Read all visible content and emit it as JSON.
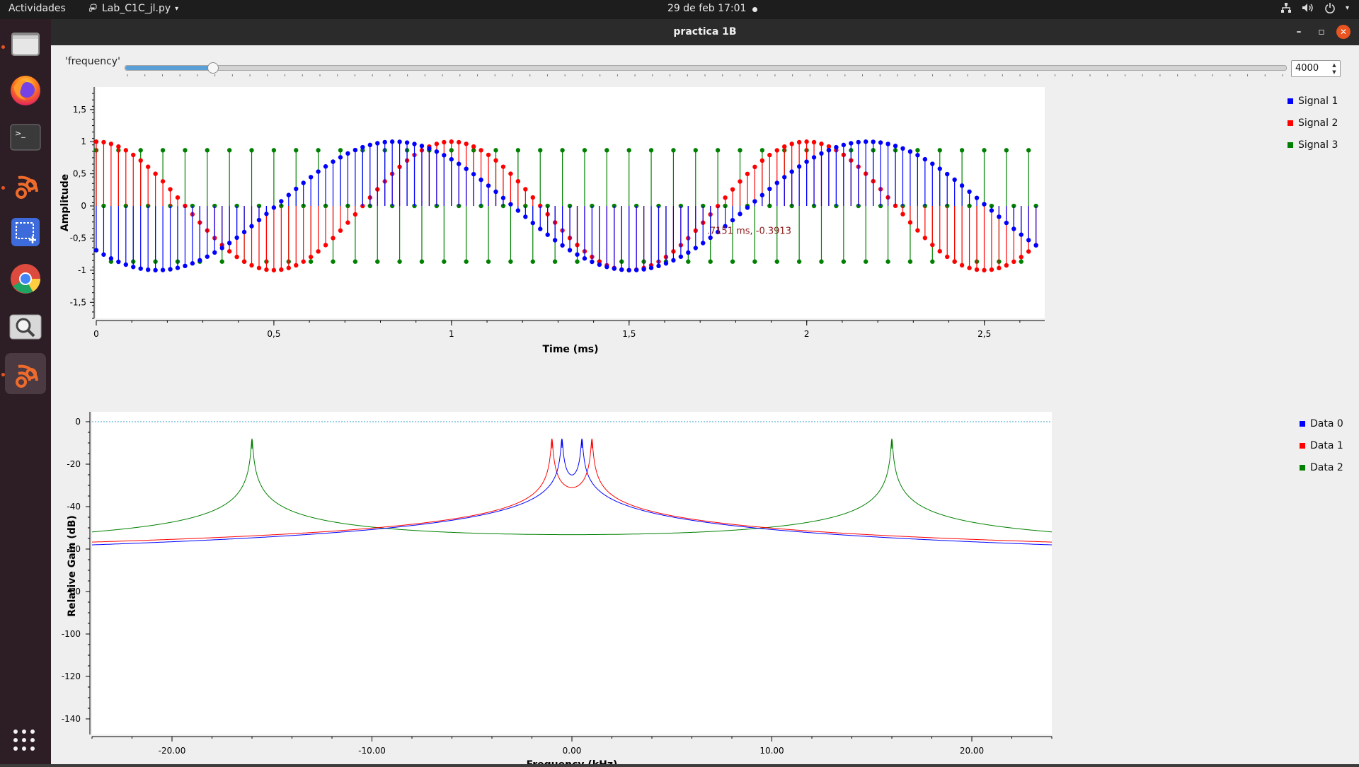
{
  "topbar": {
    "activities": "Actividades",
    "app_name": "Lab_C1C_jl.py",
    "clock": "29 de feb  17:01"
  },
  "dock": {
    "items": [
      {
        "name": "files",
        "icon": "folder-icon"
      },
      {
        "name": "firefox",
        "icon": "firefox-icon"
      },
      {
        "name": "terminal",
        "icon": "terminal-icon"
      },
      {
        "name": "gnuradio",
        "icon": "gnuradio-icon"
      },
      {
        "name": "screenshot",
        "icon": "screenshot-icon"
      },
      {
        "name": "chrome",
        "icon": "chrome-icon"
      },
      {
        "name": "image-viewer",
        "icon": "magnifier-icon"
      },
      {
        "name": "gnuradio-running",
        "icon": "gnuradio-icon"
      }
    ],
    "apps_grid_icon": "apps-grid-icon"
  },
  "window": {
    "title": "practica  1B",
    "slider": {
      "label": "'frequency'",
      "value": "4000",
      "position_fraction": 0.075
    }
  },
  "colors": {
    "signal1": "#0000ff",
    "signal2": "#ff0000",
    "signal3": "#008000",
    "accent": "#e95420",
    "slider_fill": "#5a9fd6"
  },
  "chart_data": [
    {
      "type": "scatter",
      "subtype": "stem",
      "xlabel": "Time (ms)",
      "ylabel": "Amplitude",
      "xlim": [
        0,
        2.67
      ],
      "ylim": [
        -1.75,
        1.85
      ],
      "x_ticks": [
        0,
        0.5,
        1,
        1.5,
        2,
        2.5
      ],
      "x_tick_labels": [
        "0",
        "0,5",
        "1",
        "1,5",
        "2",
        "2,5"
      ],
      "y_ticks": [
        1.5,
        1,
        0.5,
        0,
        -0.5,
        -1,
        -1.5
      ],
      "y_tick_labels": [
        "1,5",
        "1",
        "0,5",
        "0",
        "-0,5",
        "-1",
        "-1,5"
      ],
      "sample_period_ms": 0.02083,
      "n_samples": 128,
      "series": [
        {
          "name": "Signal 1",
          "color": "#0000ff",
          "formula": "-sin(2*pi*0.75*t + 0.76)",
          "frequency_khz": 0.75
        },
        {
          "name": "Signal 2",
          "color": "#ff0000",
          "formula": "cos(2*pi*1.0*t)",
          "frequency_khz": 1.0
        },
        {
          "name": "Signal 3",
          "color": "#008000",
          "formula": "sampled sin at 16 kHz",
          "values_cycle": [
            0.866,
            0,
            -0.866
          ]
        }
      ],
      "annotation": {
        "text": ".7151 ms, -0.3913",
        "x": 1.7151,
        "y": -0.3913
      }
    },
    {
      "type": "line",
      "xlabel": "Frequency (kHz)",
      "ylabel": "Relative Gain (dB)",
      "xlim": [
        -24,
        24
      ],
      "ylim": [
        -140,
        5
      ],
      "x_ticks": [
        -20,
        -10,
        0,
        10,
        20
      ],
      "x_tick_labels": [
        "-20.00",
        "-10.00",
        "0.00",
        "10.00",
        "20.00"
      ],
      "y_ticks": [
        0,
        -20,
        -40,
        -60,
        -80,
        -100,
        -120,
        -140
      ],
      "y_tick_labels": [
        "0",
        "-20",
        "-40",
        "-60",
        "-80",
        "-100",
        "-120",
        "-140"
      ],
      "reference_line_db": 0,
      "series": [
        {
          "name": "Data 0",
          "color": "#0000ff",
          "peaks_khz": [
            -0.5,
            0.5
          ],
          "peak_db": -8,
          "floor_db": -80.5,
          "dip_db": -38.5
        },
        {
          "name": "Data 1",
          "color": "#ff0000",
          "peaks_khz": [
            -1.0,
            1.0
          ],
          "peak_db": -8,
          "floor_db": -70.5,
          "dip_db": -48
        },
        {
          "name": "Data 2",
          "color": "#008000",
          "peaks_khz": [
            -16,
            16
          ],
          "peak_db": -8,
          "floor_db": -67,
          "mid_db": -68
        }
      ]
    }
  ]
}
